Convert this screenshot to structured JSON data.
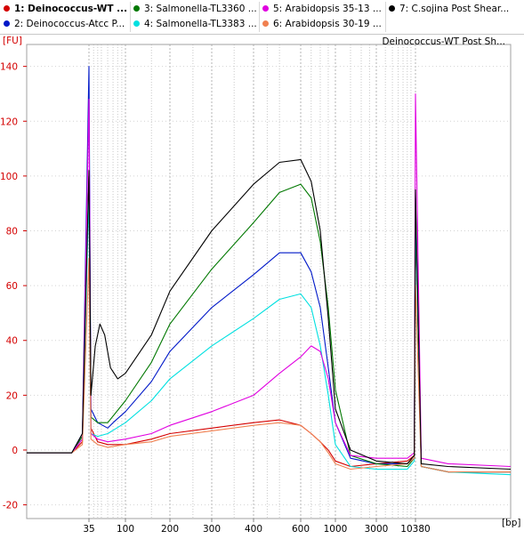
{
  "legend": {
    "items": [
      {
        "label": "1: Deinococcus-WT ...",
        "color": "#d40000",
        "selected": true
      },
      {
        "label": "2: Deinococcus-Atcc P...",
        "color": "#0018c8",
        "selected": false
      },
      {
        "label": "3: Salmonella-TL3360 ...",
        "color": "#007800",
        "selected": false
      },
      {
        "label": "4: Salmonella-TL3383 ...",
        "color": "#00e0e0",
        "selected": false
      },
      {
        "label": "5: Arabidopsis 35-13 ...",
        "color": "#e000e0",
        "selected": false
      },
      {
        "label": "6: Arabidopsis 30-19 ...",
        "color": "#f08050",
        "selected": false
      },
      {
        "label": "7: C.sojina Post Shear...",
        "color": "#000000",
        "selected": false
      }
    ]
  },
  "chart_data": {
    "type": "line",
    "title": "Deinococcus-WT Post Sh...",
    "ylabel": "[FU]",
    "xlabel": "[bp]",
    "ylim": [
      -25,
      148
    ],
    "y_ticks": [
      -20,
      0,
      20,
      40,
      60,
      80,
      100,
      120,
      140
    ],
    "x_ticks": [
      "35",
      "100",
      "200",
      "300",
      "400",
      "600",
      "1000",
      "3000",
      "10380"
    ],
    "x_tick_positions": [
      35,
      100,
      200,
      300,
      400,
      600,
      1000,
      3000,
      10380
    ],
    "grid": true,
    "x_axis": "non-linear base-pair scale (bp)",
    "series": [
      {
        "name": "1: Deinococcus-WT ...",
        "color": "#d40000",
        "points": [
          [
            20,
            -1
          ],
          [
            30,
            -1
          ],
          [
            33,
            3
          ],
          [
            35,
            100
          ],
          [
            37,
            8
          ],
          [
            45,
            3
          ],
          [
            60,
            2
          ],
          [
            100,
            2
          ],
          [
            150,
            4
          ],
          [
            200,
            6
          ],
          [
            300,
            8
          ],
          [
            400,
            10
          ],
          [
            500,
            11
          ],
          [
            600,
            9
          ],
          [
            700,
            6
          ],
          [
            800,
            3
          ],
          [
            900,
            0
          ],
          [
            1000,
            -4
          ],
          [
            1500,
            -6
          ],
          [
            3000,
            -5
          ],
          [
            8000,
            -4
          ],
          [
            10000,
            -2
          ],
          [
            10380,
            88
          ],
          [
            10800,
            -6
          ],
          [
            13000,
            -8
          ],
          [
            20000,
            -8
          ]
        ]
      },
      {
        "name": "2: Deinococcus-Atcc P...",
        "color": "#0018c8",
        "points": [
          [
            20,
            -1
          ],
          [
            30,
            -1
          ],
          [
            33,
            6
          ],
          [
            35,
            140
          ],
          [
            37,
            15
          ],
          [
            45,
            10
          ],
          [
            60,
            8
          ],
          [
            70,
            10
          ],
          [
            100,
            14
          ],
          [
            150,
            25
          ],
          [
            200,
            36
          ],
          [
            300,
            52
          ],
          [
            400,
            64
          ],
          [
            500,
            72
          ],
          [
            600,
            72
          ],
          [
            700,
            65
          ],
          [
            800,
            52
          ],
          [
            900,
            30
          ],
          [
            1000,
            10
          ],
          [
            1500,
            -3
          ],
          [
            3000,
            -5
          ],
          [
            8000,
            -5
          ],
          [
            10000,
            -3
          ],
          [
            10380,
            92
          ],
          [
            10800,
            -6
          ],
          [
            13000,
            -8
          ],
          [
            20000,
            -8
          ]
        ]
      },
      {
        "name": "3: Salmonella-TL3360 ...",
        "color": "#007800",
        "points": [
          [
            20,
            -1
          ],
          [
            30,
            -1
          ],
          [
            33,
            5
          ],
          [
            35,
            100
          ],
          [
            37,
            12
          ],
          [
            45,
            10
          ],
          [
            60,
            10
          ],
          [
            100,
            18
          ],
          [
            150,
            32
          ],
          [
            200,
            46
          ],
          [
            300,
            66
          ],
          [
            400,
            83
          ],
          [
            500,
            94
          ],
          [
            600,
            97
          ],
          [
            700,
            92
          ],
          [
            800,
            76
          ],
          [
            900,
            52
          ],
          [
            1000,
            22
          ],
          [
            1500,
            -2
          ],
          [
            3000,
            -5
          ],
          [
            8000,
            -6
          ],
          [
            10000,
            -3
          ],
          [
            10380,
            86
          ],
          [
            10800,
            -6
          ],
          [
            13000,
            -8
          ],
          [
            20000,
            -8
          ]
        ]
      },
      {
        "name": "4: Salmonella-TL3383 ...",
        "color": "#00e0e0",
        "points": [
          [
            20,
            -1
          ],
          [
            30,
            -1
          ],
          [
            33,
            4
          ],
          [
            35,
            95
          ],
          [
            37,
            6
          ],
          [
            45,
            5
          ],
          [
            60,
            6
          ],
          [
            100,
            10
          ],
          [
            150,
            18
          ],
          [
            200,
            26
          ],
          [
            300,
            38
          ],
          [
            400,
            48
          ],
          [
            500,
            55
          ],
          [
            600,
            57
          ],
          [
            700,
            52
          ],
          [
            800,
            38
          ],
          [
            900,
            20
          ],
          [
            1000,
            2
          ],
          [
            1500,
            -6
          ],
          [
            3000,
            -7
          ],
          [
            8000,
            -7
          ],
          [
            10000,
            -4
          ],
          [
            10380,
            90
          ],
          [
            10800,
            -6
          ],
          [
            13000,
            -8
          ],
          [
            20000,
            -9
          ]
        ]
      },
      {
        "name": "5: Arabidopsis 35-13 ...",
        "color": "#e000e0",
        "points": [
          [
            20,
            -1
          ],
          [
            30,
            -1
          ],
          [
            33,
            4
          ],
          [
            35,
            128
          ],
          [
            37,
            6
          ],
          [
            45,
            4
          ],
          [
            60,
            3
          ],
          [
            100,
            4
          ],
          [
            150,
            6
          ],
          [
            200,
            9
          ],
          [
            300,
            14
          ],
          [
            400,
            20
          ],
          [
            500,
            28
          ],
          [
            600,
            34
          ],
          [
            700,
            38
          ],
          [
            800,
            36
          ],
          [
            900,
            26
          ],
          [
            1000,
            10
          ],
          [
            1500,
            -2
          ],
          [
            3000,
            -3
          ],
          [
            8000,
            -3
          ],
          [
            10000,
            -1
          ],
          [
            10380,
            130
          ],
          [
            10800,
            -3
          ],
          [
            13000,
            -5
          ],
          [
            20000,
            -6
          ]
        ]
      },
      {
        "name": "6: Arabidopsis 30-19 ...",
        "color": "#f08050",
        "points": [
          [
            20,
            -1
          ],
          [
            30,
            -1
          ],
          [
            33,
            2
          ],
          [
            35,
            70
          ],
          [
            37,
            4
          ],
          [
            45,
            2
          ],
          [
            60,
            1
          ],
          [
            100,
            2
          ],
          [
            150,
            3
          ],
          [
            200,
            5
          ],
          [
            300,
            7
          ],
          [
            400,
            9
          ],
          [
            500,
            10
          ],
          [
            600,
            9
          ],
          [
            700,
            6
          ],
          [
            800,
            3
          ],
          [
            900,
            -1
          ],
          [
            1000,
            -5
          ],
          [
            1500,
            -7
          ],
          [
            3000,
            -6
          ],
          [
            8000,
            -5
          ],
          [
            10000,
            -3
          ],
          [
            10380,
            60
          ],
          [
            10800,
            -6
          ],
          [
            13000,
            -8
          ],
          [
            20000,
            -8
          ]
        ]
      },
      {
        "name": "7: C.sojina Post Shear...",
        "color": "#000000",
        "points": [
          [
            20,
            -1
          ],
          [
            30,
            -1
          ],
          [
            33,
            6
          ],
          [
            35,
            102
          ],
          [
            37,
            20
          ],
          [
            42,
            38
          ],
          [
            48,
            46
          ],
          [
            55,
            42
          ],
          [
            65,
            30
          ],
          [
            80,
            26
          ],
          [
            100,
            28
          ],
          [
            150,
            42
          ],
          [
            200,
            58
          ],
          [
            300,
            80
          ],
          [
            400,
            97
          ],
          [
            500,
            105
          ],
          [
            600,
            106
          ],
          [
            700,
            98
          ],
          [
            800,
            80
          ],
          [
            900,
            48
          ],
          [
            1000,
            15
          ],
          [
            1500,
            0
          ],
          [
            3000,
            -4
          ],
          [
            8000,
            -5
          ],
          [
            10000,
            -2
          ],
          [
            10380,
            95
          ],
          [
            10800,
            -5
          ],
          [
            13000,
            -6
          ],
          [
            20000,
            -7
          ]
        ]
      }
    ]
  }
}
